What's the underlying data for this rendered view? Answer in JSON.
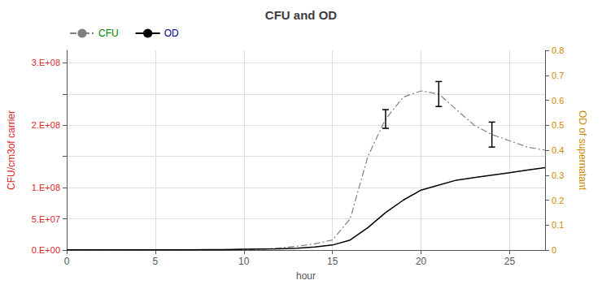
{
  "chart_data": {
    "type": "line",
    "title": "CFU and OD",
    "xlabel": "hour",
    "ylabel": "CFU/cm3of carrier",
    "y2label": "OD of supernatant",
    "x": [
      0,
      1,
      2,
      3,
      4,
      5,
      6,
      7,
      8,
      9,
      10,
      11,
      12,
      13,
      14,
      15,
      16,
      17,
      18,
      19,
      20,
      21,
      22,
      23,
      24,
      25,
      26,
      27
    ],
    "series": [
      {
        "name": "CFU",
        "color": "#808080",
        "line_style": "dashdot",
        "values": [
          200000,
          200000,
          200000,
          300000,
          300000,
          400000,
          400000,
          500000,
          600000,
          700000,
          800000,
          1200000,
          3500000,
          6000000,
          10000000,
          16000000,
          50000000,
          150000000,
          210000000,
          245000000,
          255000000,
          250000000,
          225000000,
          200000000,
          185000000,
          175000000,
          165000000,
          160000000
        ]
      },
      {
        "name": "OD",
        "color": "#000000",
        "line_style": "solid",
        "axis": "y2",
        "values": [
          0.001,
          0.001,
          0.001,
          0.001,
          0.001,
          0.001,
          0.001,
          0.001,
          0.002,
          0.002,
          0.003,
          0.004,
          0.005,
          0.007,
          0.012,
          0.02,
          0.04,
          0.09,
          0.15,
          0.2,
          0.24,
          0.26,
          0.28,
          0.29,
          0.3,
          0.31,
          0.32,
          0.33
        ]
      }
    ],
    "error_bars": {
      "x": [
        18,
        21,
        24
      ],
      "values": [
        210000000,
        250000000,
        185000000
      ],
      "errors": [
        15000000,
        20000000,
        20000000
      ]
    },
    "xlim": [
      0,
      27
    ],
    "xticks": [
      0,
      5,
      10,
      15,
      20,
      25
    ],
    "ylim": [
      0,
      320000000
    ],
    "yticks": [
      {
        "value": 0,
        "label": "0.E+00"
      },
      {
        "value": 50000000,
        "label": "5.E+07"
      },
      {
        "value": 100000000,
        "label": "1.E+08"
      },
      {
        "value": 150000000,
        "label": null
      },
      {
        "value": 200000000,
        "label": "2.E+08"
      },
      {
        "value": 250000000,
        "label": null
      },
      {
        "value": 300000000,
        "label": "3.E+08"
      }
    ],
    "y2lim": [
      0,
      0.8
    ],
    "y2ticks": [
      0,
      0.1,
      0.2,
      0.3,
      0.4,
      0.5,
      0.6,
      0.7,
      0.8
    ],
    "grid": true,
    "legend": "upper left"
  }
}
